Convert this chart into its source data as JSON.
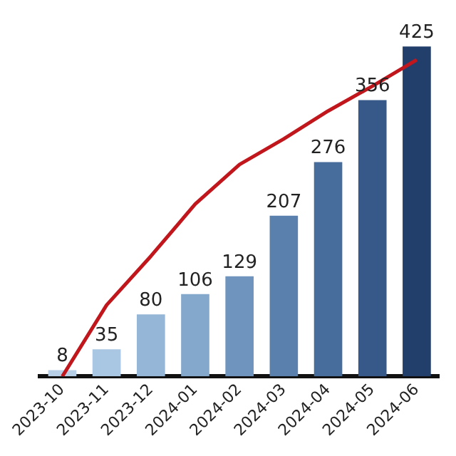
{
  "chart_data": {
    "type": "bar",
    "categories": [
      "2023-10",
      "2023-11",
      "2023-12",
      "2024-01",
      "2024-02",
      "2024-03",
      "2024-04",
      "2024-05",
      "2024-06"
    ],
    "series": [
      {
        "values": [
          8,
          35,
          80,
          106,
          129,
          207,
          276,
          356,
          425
        ],
        "value_labels": [
          "8",
          "35",
          "80",
          "106",
          "129",
          "207",
          "276",
          "356",
          "425"
        ],
        "colors": [
          "#b7d0e8",
          "#a9c6e2",
          "#95b6d6",
          "#84a8cc",
          "#6f95be",
          "#5a80ae",
          "#476d9c",
          "#36598a",
          "#223f6c"
        ]
      },
      {
        "type": "line",
        "color": "#c0161c",
        "values": [
          0,
          92,
          155,
          222,
          273,
          306,
          342,
          374,
          408
        ]
      }
    ],
    "grid": false,
    "legend": false,
    "marker": "none",
    "tick_labels": "x"
  }
}
